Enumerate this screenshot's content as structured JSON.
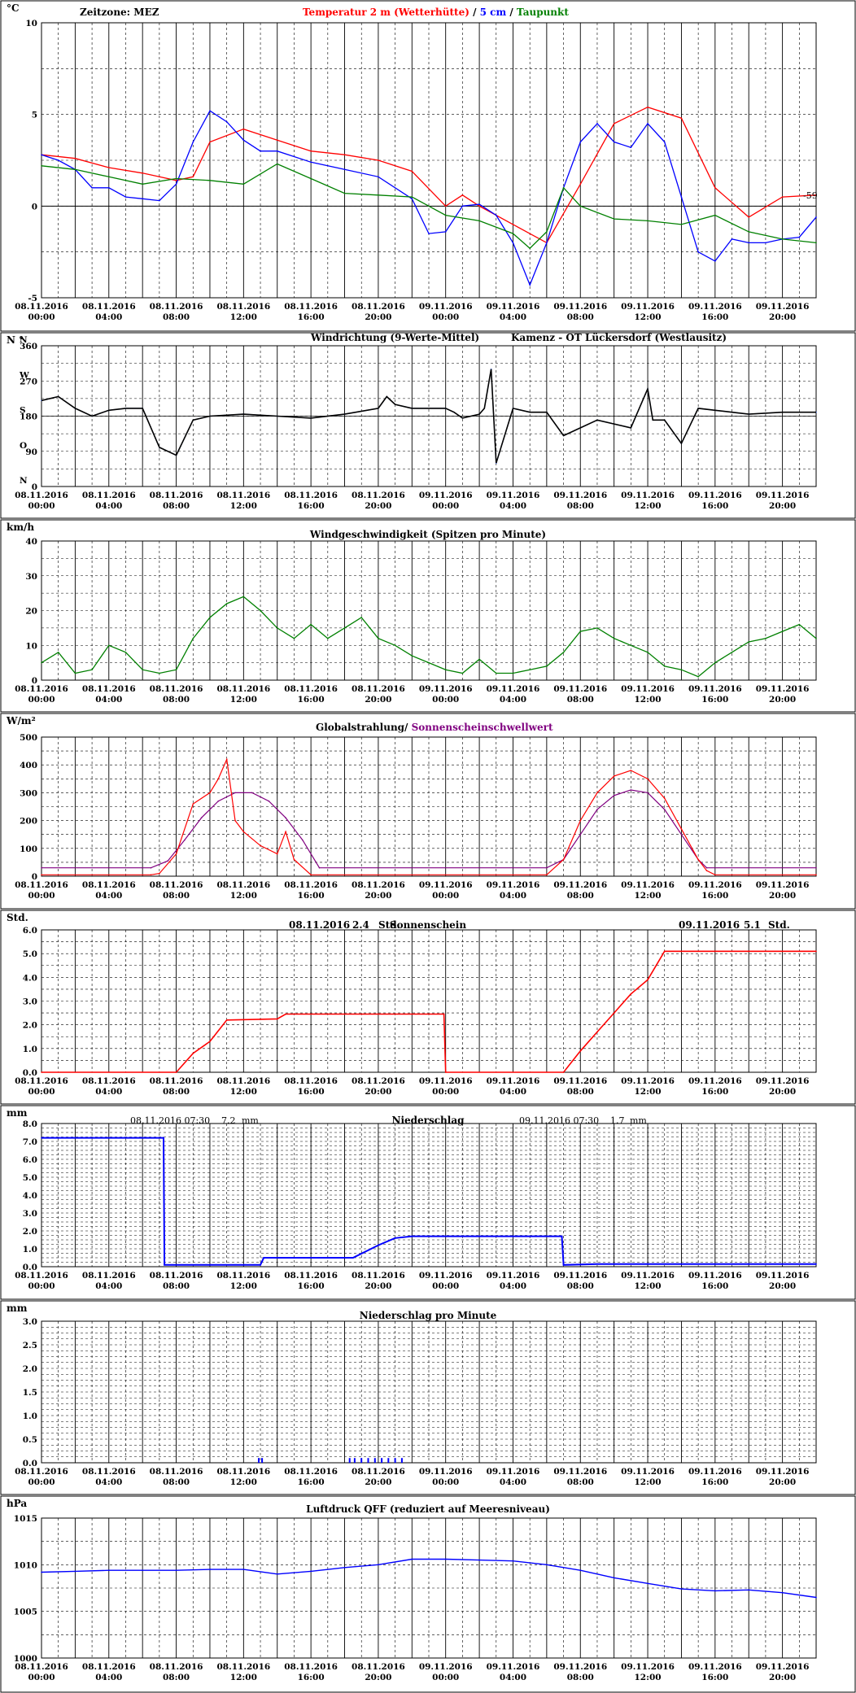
{
  "x_tick_labels": [
    [
      "08.11.2016",
      "00:00"
    ],
    [
      "08.11.2016",
      "04:00"
    ],
    [
      "08.11.2016",
      "08:00"
    ],
    [
      "08.11.2016",
      "12:00"
    ],
    [
      "08.11.2016",
      "16:00"
    ],
    [
      "08.11.2016",
      "20:00"
    ],
    [
      "09.11.2016",
      "00:00"
    ],
    [
      "09.11.2016",
      "04:00"
    ],
    [
      "09.11.2016",
      "08:00"
    ],
    [
      "09.11.2016",
      "12:00"
    ],
    [
      "09.11.2016",
      "16:00"
    ],
    [
      "09.11.2016",
      "20:00"
    ]
  ],
  "colors": {
    "temp": "#ff0000",
    "soil5": "#0000ff",
    "dew": "#008000",
    "wind_dir_raw": "#3366ff",
    "wind_dir_avg": "#000000",
    "wind_speed": "#008000",
    "radiation": "#ff0000",
    "threshold": "#800080",
    "sunshine": "#ff0000",
    "precip": "#0000ff",
    "pressure": "#0000ff"
  },
  "chart_data": [
    {
      "type": "line",
      "unit": "°C",
      "header_left": "Zeitzone: MEZ",
      "title_parts": [
        "Temperatur 2 m (Wetterhütte)",
        "/",
        "5 cm",
        "/",
        "Taupunkt"
      ],
      "ylim": [
        -5,
        10
      ],
      "yticks": [
        "10",
        "5",
        "0",
        "-5"
      ],
      "end_label": "-59",
      "series": [
        {
          "name": "Temperatur 2 m (Wetterhütte)",
          "x": [
            0,
            2,
            4,
            6,
            7,
            8,
            9,
            10,
            12,
            14,
            16,
            18,
            20,
            22,
            24,
            25,
            26,
            28,
            30,
            32,
            34,
            36,
            38,
            40,
            42,
            44,
            46
          ],
          "y": [
            2.8,
            2.6,
            2.1,
            1.8,
            1.6,
            1.4,
            1.6,
            3.5,
            4.2,
            3.6,
            3.0,
            2.8,
            2.5,
            1.9,
            0.0,
            0.6,
            0.0,
            -1.0,
            -2.0,
            1.2,
            4.5,
            5.4,
            4.8,
            1.0,
            -0.6,
            0.5,
            0.6
          ]
        },
        {
          "name": "5 cm",
          "x": [
            0,
            1,
            2,
            3,
            4,
            5,
            6,
            7,
            8,
            9,
            10,
            11,
            12,
            13,
            14,
            16,
            18,
            20,
            22,
            23,
            24,
            25,
            26,
            27,
            28,
            29,
            30,
            31,
            32,
            33,
            34,
            35,
            36,
            37,
            38,
            39,
            40,
            41,
            42,
            43,
            44,
            45,
            46
          ],
          "y": [
            2.8,
            2.5,
            2.0,
            1.0,
            1.0,
            0.5,
            0.4,
            0.3,
            1.2,
            3.5,
            5.2,
            4.6,
            3.6,
            3.0,
            3.0,
            2.4,
            2.0,
            1.6,
            0.4,
            -1.5,
            -1.4,
            0.0,
            0.1,
            -0.5,
            -2.0,
            -4.3,
            -2.0,
            1.0,
            3.5,
            4.5,
            3.5,
            3.2,
            4.5,
            3.5,
            0.5,
            -2.5,
            -3.0,
            -1.8,
            -2.0,
            -2.0,
            -1.8,
            -1.7,
            -0.6
          ]
        },
        {
          "name": "Taupunkt",
          "x": [
            0,
            2,
            4,
            6,
            8,
            10,
            12,
            14,
            16,
            18,
            20,
            22,
            24,
            26,
            28,
            29,
            30,
            31,
            32,
            34,
            36,
            38,
            40,
            42,
            44,
            46
          ],
          "y": [
            2.2,
            2.0,
            1.6,
            1.2,
            1.5,
            1.4,
            1.2,
            2.3,
            1.5,
            0.7,
            0.6,
            0.5,
            -0.5,
            -0.8,
            -1.5,
            -2.3,
            -1.4,
            1.0,
            0.0,
            -0.7,
            -0.8,
            -1.0,
            -0.5,
            -1.4,
            -1.8,
            -2.0
          ]
        }
      ]
    },
    {
      "type": "line",
      "unit": "N °",
      "title_left": "Windrichtung (9-Werte-Mittel)",
      "title_right": "Kamenz - OT Lückersdorf (Westlausitz)",
      "ylim": [
        0,
        360
      ],
      "yticks": [
        "360",
        "270",
        "180",
        "90",
        "0"
      ],
      "compass_labels": [
        "N",
        "W",
        "S",
        "O",
        "N"
      ],
      "series": [
        {
          "name": "Windrichtung",
          "x": [
            0,
            1,
            2,
            3,
            4,
            5,
            6,
            7,
            8,
            9,
            10,
            12,
            14,
            16,
            18,
            20,
            20.5,
            21,
            22,
            24,
            24.5,
            25,
            26,
            26.3,
            26.7,
            27,
            28,
            29,
            30,
            31,
            32,
            33,
            35,
            36,
            36.3,
            37,
            38,
            39,
            40,
            41,
            42,
            44,
            46
          ],
          "y": [
            220,
            230,
            200,
            180,
            195,
            200,
            200,
            100,
            80,
            170,
            180,
            185,
            180,
            175,
            185,
            200,
            230,
            210,
            200,
            200,
            190,
            175,
            185,
            200,
            300,
            60,
            200,
            190,
            190,
            130,
            150,
            170,
            150,
            250,
            170,
            170,
            110,
            200,
            195,
            190,
            185,
            190,
            190
          ]
        }
      ]
    },
    {
      "type": "line",
      "unit": "km/h",
      "title": "Windgeschwindigkeit (Spitzen pro Minute)",
      "ylim": [
        0,
        40
      ],
      "yticks": [
        "40",
        "30",
        "20",
        "10",
        "0"
      ],
      "series": [
        {
          "name": "Windgeschwindigkeit",
          "x": [
            0,
            1,
            2,
            3,
            4,
            5,
            6,
            7,
            8,
            9,
            10,
            11,
            12,
            13,
            14,
            15,
            16,
            17,
            18,
            19,
            20,
            21,
            22,
            23,
            24,
            25,
            26,
            27,
            28,
            29,
            30,
            31,
            32,
            33,
            34,
            35,
            36,
            37,
            38,
            39,
            40,
            41,
            42,
            43,
            44,
            45,
            46
          ],
          "y": [
            5,
            8,
            2,
            3,
            10,
            8,
            3,
            2,
            3,
            12,
            18,
            22,
            24,
            20,
            15,
            12,
            16,
            12,
            15,
            18,
            12,
            10,
            7,
            5,
            3,
            2,
            6,
            2,
            2,
            3,
            4,
            8,
            14,
            15,
            12,
            10,
            8,
            4,
            3,
            1,
            5,
            8,
            11,
            12,
            14,
            16,
            12
          ]
        }
      ]
    },
    {
      "type": "line",
      "unit": "W/m²",
      "title_parts": [
        "Globalstrahlung/",
        "Sonnenscheinschwellwert"
      ],
      "ylim": [
        0,
        500
      ],
      "yticks": [
        "500",
        "400",
        "300",
        "200",
        "100",
        "0"
      ],
      "series": [
        {
          "name": "Globalstrahlung",
          "x": [
            0,
            6.5,
            7,
            8,
            9,
            10,
            10.5,
            11,
            11.5,
            12,
            13,
            14,
            14.5,
            15,
            16,
            30,
            31,
            32,
            33,
            34,
            35,
            36,
            37,
            38,
            39,
            39.5,
            40,
            46
          ],
          "y": [
            5,
            5,
            10,
            80,
            260,
            300,
            350,
            420,
            200,
            160,
            110,
            80,
            160,
            60,
            5,
            5,
            60,
            200,
            300,
            360,
            380,
            350,
            280,
            170,
            60,
            20,
            5,
            5
          ]
        },
        {
          "name": "Sonnenscheinschwellwert",
          "x": [
            0,
            6.5,
            7.5,
            8.5,
            9.5,
            10.5,
            11.5,
            12.5,
            13.5,
            14.5,
            15.5,
            16.5,
            30,
            31,
            32,
            33,
            34,
            35,
            36,
            37,
            38,
            39,
            39.5,
            46
          ],
          "y": [
            30,
            30,
            55,
            130,
            210,
            270,
            300,
            300,
            270,
            210,
            130,
            30,
            30,
            60,
            150,
            240,
            290,
            310,
            300,
            240,
            150,
            60,
            30,
            30
          ]
        }
      ]
    },
    {
      "type": "line",
      "unit": "Std.",
      "title": "Sonnenschein",
      "day_summaries": [
        {
          "date": "08.11.2016",
          "value": "2.4",
          "unit": "Std."
        },
        {
          "date": "09.11.2016",
          "value": "5.1",
          "unit": "Std."
        }
      ],
      "ylim": [
        0,
        6
      ],
      "yticks": [
        "6.0",
        "5.0",
        "4.0",
        "3.0",
        "2.0",
        "1.0",
        "0.0"
      ],
      "series": [
        {
          "name": "Sonnenschein",
          "x": [
            0,
            8,
            9,
            10,
            11,
            14,
            14.5,
            23.9,
            24,
            31,
            32,
            33,
            34,
            35,
            36,
            37,
            46
          ],
          "y": [
            0,
            0,
            0.8,
            1.3,
            2.2,
            2.25,
            2.45,
            2.45,
            0,
            0,
            0.9,
            1.7,
            2.5,
            3.3,
            3.9,
            5.1,
            5.1
          ]
        }
      ]
    },
    {
      "type": "line",
      "unit": "mm",
      "title": "Niederschlag",
      "day_summaries": [
        {
          "date": "08.11.2016 07:30",
          "value": "7.2",
          "unit": "mm"
        },
        {
          "date": "09.11.2016 07:30",
          "value": "1.7",
          "unit": "mm"
        }
      ],
      "ylim": [
        0,
        8
      ],
      "yticks": [
        "8.0",
        "7.0",
        "6.0",
        "5.0",
        "4.0",
        "3.0",
        "2.0",
        "1.0",
        "0.0"
      ],
      "series": [
        {
          "name": "Niederschlag",
          "x": [
            0,
            7.25,
            7.3,
            13,
            13.2,
            18.5,
            20,
            21,
            22,
            30.9,
            31,
            33,
            46
          ],
          "y": [
            7.2,
            7.2,
            0.1,
            0.1,
            0.5,
            0.5,
            1.2,
            1.6,
            1.7,
            1.7,
            0.1,
            0.15,
            0.15
          ]
        }
      ]
    },
    {
      "type": "bar",
      "unit": "mm",
      "title": "Niederschlag pro Minute",
      "ylim": [
        0,
        3
      ],
      "yticks": [
        "3.0",
        "2.5",
        "2.0",
        "1.5",
        "1.0",
        "0.5",
        "0.0"
      ],
      "series": [
        {
          "name": "Niederschlag pro Minute",
          "x": [
            12.9,
            13.1,
            18.3,
            18.6,
            19.0,
            19.4,
            19.8,
            20.2,
            20.6,
            21.0,
            21.4
          ],
          "y": [
            0.1,
            0.1,
            0.1,
            0.1,
            0.1,
            0.1,
            0.1,
            0.1,
            0.1,
            0.1,
            0.1
          ]
        }
      ]
    },
    {
      "type": "line",
      "unit": "hPa",
      "title": "Luftdruck QFF (reduziert auf Meeresniveau)",
      "ylim": [
        1000,
        1015
      ],
      "yticks": [
        "1015",
        "1010",
        "1005",
        "1000"
      ],
      "series": [
        {
          "name": "Luftdruck",
          "x": [
            0,
            2,
            4,
            6,
            8,
            10,
            12,
            14,
            16,
            18,
            20,
            22,
            24,
            26,
            28,
            30,
            32,
            34,
            36,
            38,
            40,
            42,
            44,
            46
          ],
          "y": [
            1009.2,
            1009.3,
            1009.4,
            1009.4,
            1009.4,
            1009.5,
            1009.5,
            1009.0,
            1009.3,
            1009.7,
            1010.0,
            1010.6,
            1010.6,
            1010.5,
            1010.4,
            1010.0,
            1009.4,
            1008.6,
            1008.0,
            1007.4,
            1007.2,
            1007.3,
            1007.0,
            1006.5
          ]
        }
      ]
    }
  ]
}
